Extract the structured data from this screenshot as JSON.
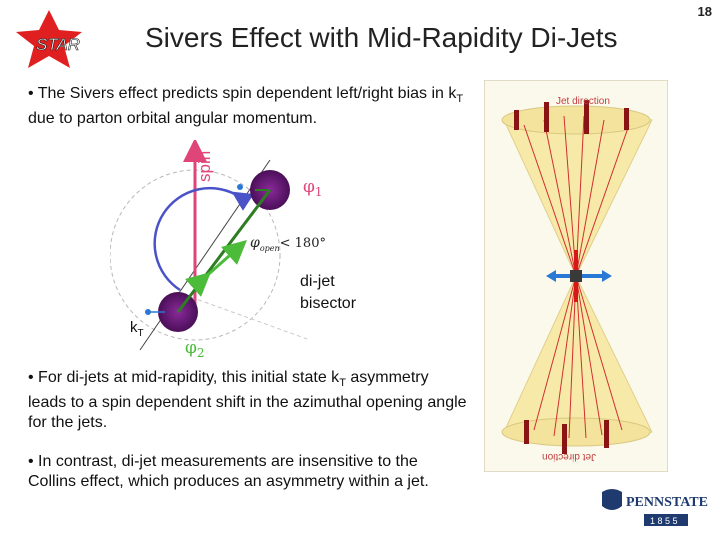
{
  "header": {
    "logo_text": "STAR",
    "title": "Sivers Effect with Mid-Rapidity Di-Jets",
    "page_number": "18"
  },
  "bullets": {
    "b1_pre": "• The Sivers effect  predicts spin dependent  left/right bias in k",
    "b1_sub": "T",
    "b1_post": " due to parton orbital angular momentum.",
    "b2_pre": "• For di-jets at mid-rapidity, this initial state k",
    "b2_sub": "T",
    "b2_post": " asymmetry leads to a spin dependent shift in the azimuthal opening angle for the jets.",
    "b3": "• In contrast, di-jet measurements are insensitive to the Collins effect, which produces an asymmetry within a jet."
  },
  "diagram": {
    "spin_label": "spin",
    "phi1": "φ",
    "phi1_sub": "1",
    "phi2": "φ",
    "phi2_sub": "2",
    "phi_open": "φ",
    "phi_open_sub": "open",
    "phi_open_cond": "< 180°",
    "bisector_line1": "di-jet",
    "bisector_line2": "bisector",
    "kt_label": "k",
    "kt_sub": "T"
  },
  "jet_panel": {
    "top_label": "Jet direction",
    "bottom_label": "Jet direction"
  },
  "logo": {
    "name": "PENNSTATE",
    "year": "1 8 5 5"
  },
  "colors": {
    "title": "#222222",
    "spin_arrow": "#e0457a",
    "jet_line": "#2e7d22",
    "bisector_arrow": "#4cbb3a",
    "open_arc": "#4a52c8",
    "parton": "#6a1a78",
    "kt_dot": "#2a78d6",
    "cone": "#f7e9a8",
    "cone_line": "#d03030",
    "psu_navy": "#1e3a6e"
  }
}
